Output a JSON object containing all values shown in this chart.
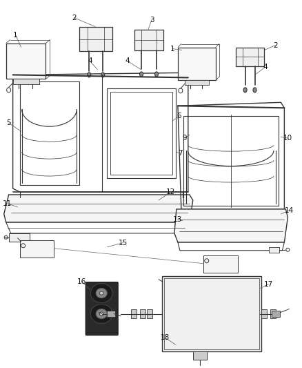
{
  "bg_color": "#ffffff",
  "line_color": "#333333",
  "label_color": "#111111",
  "font_size": 7.5,
  "fig_width": 4.38,
  "fig_height": 5.33,
  "dpi": 100
}
